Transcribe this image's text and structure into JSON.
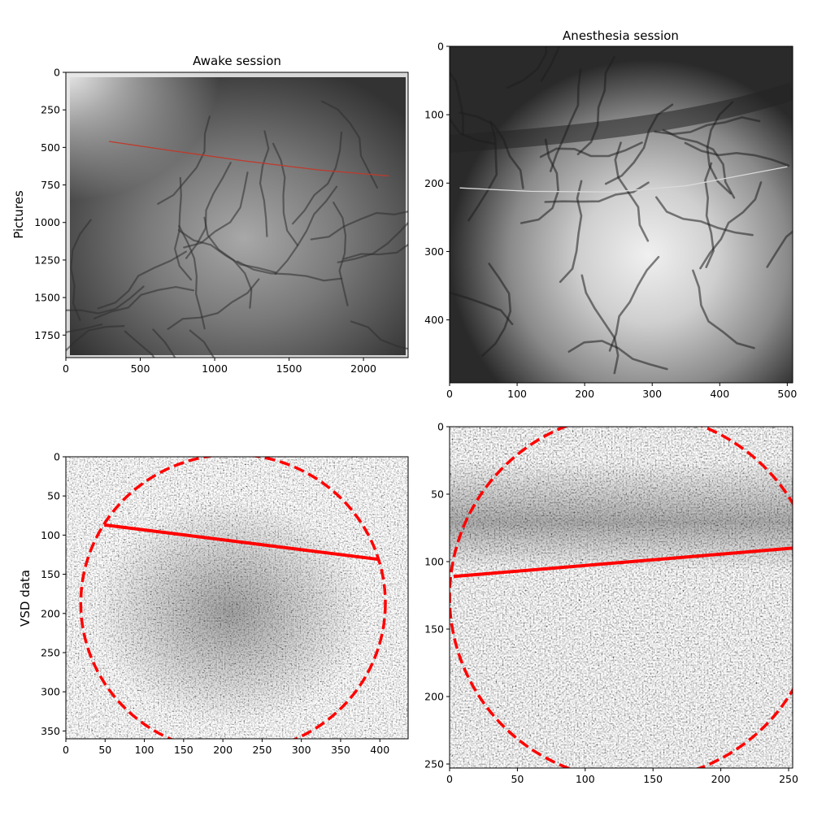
{
  "chart_data": [
    {
      "type": "image",
      "title": "Awake session",
      "ylabel": "Pictures",
      "xlabel": "",
      "xlim": [
        0,
        2300
      ],
      "ylim": [
        1900,
        0
      ],
      "xticks": [
        0,
        500,
        1000,
        1500,
        2000
      ],
      "yticks": [
        0,
        250,
        500,
        750,
        1000,
        1250,
        1500,
        1750
      ],
      "image": "grayscale widefield photo of cortical vasculature",
      "overlays": [
        {
          "kind": "polyline",
          "color": "#c0392b",
          "points": [
            [
              290,
              460
            ],
            [
              700,
              520
            ],
            [
              1200,
              590
            ],
            [
              1700,
              650
            ],
            [
              2170,
              690
            ]
          ]
        }
      ]
    },
    {
      "type": "image",
      "title": "Anesthesia session",
      "ylabel": "",
      "xlabel": "",
      "xlim": [
        0,
        508
      ],
      "ylim": [
        492,
        0
      ],
      "xticks": [
        0,
        100,
        200,
        300,
        400,
        500
      ],
      "yticks": [
        0,
        100,
        200,
        300,
        400
      ],
      "image": "grayscale widefield photo of cortical vasculature",
      "overlays": [
        {
          "kind": "polyline",
          "color": "#d9d9d9",
          "points": [
            [
              15,
              207
            ],
            [
              120,
              212
            ],
            [
              240,
              213
            ],
            [
              350,
              204
            ],
            [
              500,
              176
            ]
          ]
        }
      ]
    },
    {
      "type": "image",
      "title": "",
      "ylabel": "VSD data",
      "xlabel": "",
      "xlim": [
        0,
        436
      ],
      "ylim": [
        360,
        0
      ],
      "xticks": [
        0,
        50,
        100,
        150,
        200,
        250,
        300,
        350,
        400
      ],
      "yticks": [
        0,
        50,
        100,
        150,
        200,
        250,
        300,
        350
      ],
      "image": "noisy grayscale VSD frame",
      "overlays": [
        {
          "kind": "ellipse",
          "style": "dashed",
          "color": "#ff0000",
          "cx": 213,
          "cy": 187,
          "rx": 194,
          "ry": 190
        },
        {
          "kind": "line",
          "color": "#ff0000",
          "points": [
            [
              49,
              87
            ],
            [
              399,
              131
            ]
          ]
        }
      ]
    },
    {
      "type": "image",
      "title": "",
      "ylabel": "",
      "xlabel": "",
      "xlim": [
        0,
        253
      ],
      "ylim": [
        253,
        0
      ],
      "xticks": [
        0,
        50,
        100,
        150,
        200,
        250
      ],
      "yticks": [
        0,
        50,
        100,
        150,
        200,
        250
      ],
      "image": "noisy grayscale VSD frame",
      "overlays": [
        {
          "kind": "ellipse",
          "style": "dashed",
          "color": "#ff0000",
          "cx": 136,
          "cy": 126,
          "rx": 136,
          "ry": 136
        },
        {
          "kind": "line",
          "color": "#ff0000",
          "points": [
            [
              3,
              111
            ],
            [
              253,
              90
            ]
          ]
        }
      ]
    }
  ]
}
